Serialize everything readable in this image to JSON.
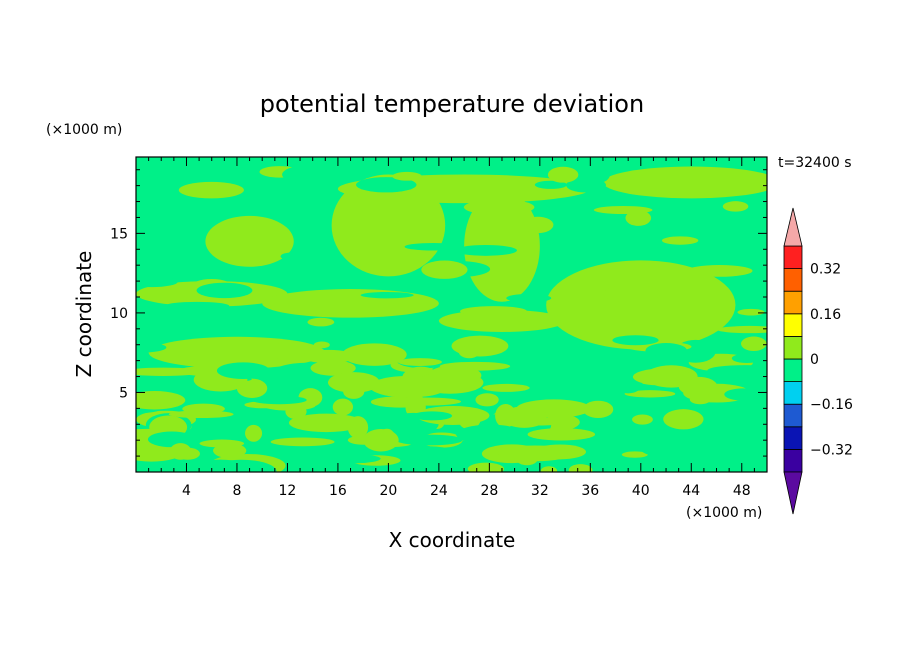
{
  "chart_data": {
    "type": "heatmap",
    "title": "potential temperature deviation",
    "time_label": "t=32400 s",
    "xlabel": "X coordinate",
    "ylabel": "Z coordinate",
    "x_unit": "(×1000 m)",
    "y_unit": "(×1000 m)",
    "xlim": [
      0,
      50
    ],
    "ylim": [
      0,
      19.8
    ],
    "x_ticks": [
      4,
      8,
      12,
      16,
      20,
      24,
      28,
      32,
      36,
      40,
      44,
      48
    ],
    "y_ticks": [
      5,
      10,
      15
    ],
    "colorbar": {
      "levels": [
        -0.4,
        -0.32,
        -0.24,
        -0.16,
        -0.08,
        0,
        0.08,
        0.16,
        0.24,
        0.32,
        0.4
      ],
      "colors": [
        "#5b0aa0",
        "#3a00a0",
        "#0a14b4",
        "#1e5ad2",
        "#00d0f0",
        "#00f088",
        "#90ea1c",
        "#ffff00",
        "#ffa000",
        "#ff6000",
        "#ff2020",
        "#f5a8a8"
      ],
      "tick_labels": [
        "0.32",
        "0.16",
        "0",
        "−0.16",
        "−0.32"
      ],
      "tick_values": [
        0.32,
        0.16,
        0,
        -0.16,
        -0.32
      ]
    },
    "field": {
      "description_values": "dominant classes: 0 to 0.08 (lime) and -0.08 to 0 (green)",
      "low_color": "#00f088",
      "high_color": "#90ea1c"
    }
  }
}
